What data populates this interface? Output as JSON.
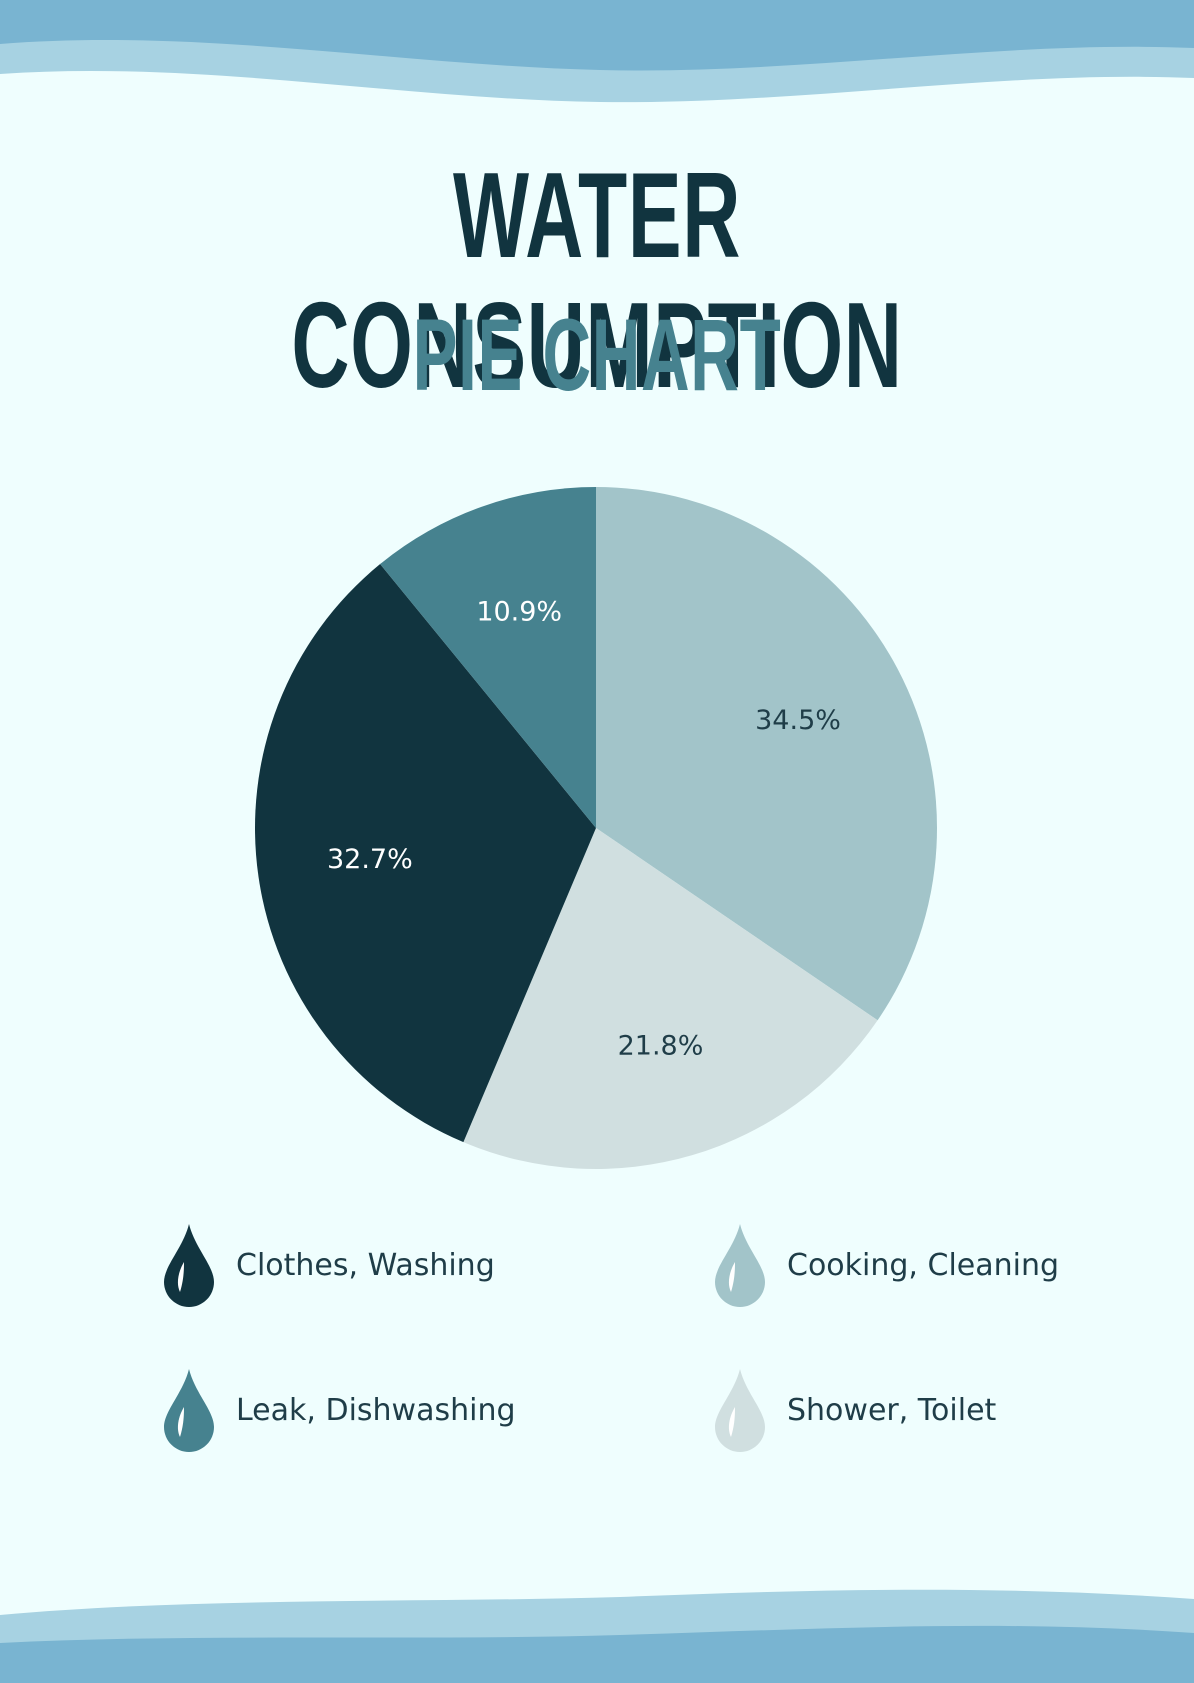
{
  "header": {
    "title": "WATER CONSUMPTION",
    "subtitle": "PIE CHART"
  },
  "colors": {
    "background": "#effefe",
    "wave_light": "#a7d2e2",
    "wave_dark": "#79b4d1",
    "title": "#11343f",
    "subtitle": "#46828f"
  },
  "chart_data": {
    "type": "pie",
    "title": "WATER CONSUMPTION PIE CHART",
    "start_angle_deg": 0,
    "direction": "clockwise",
    "slices": [
      {
        "name": "Cooking, Cleaning",
        "value": 34.5,
        "label": "34.5%",
        "color": "#a2c4c9",
        "label_color": "#1f3d48",
        "icon": "water-drop-icon"
      },
      {
        "name": "Shower, Toilet",
        "value": 21.8,
        "label": "21.8%",
        "color": "#d0dfe0",
        "label_color": "#1f3d48",
        "icon": "water-drop-icon"
      },
      {
        "name": "Clothes, Washing",
        "value": 32.7,
        "label": "32.7%",
        "color": "#11343f",
        "label_color": "#ffffff",
        "icon": "water-drop-icon"
      },
      {
        "name": "Leak, Dishwashing",
        "value": 10.9,
        "label": "10.9%",
        "color": "#46828f",
        "label_color": "#ffffff",
        "icon": "water-drop-icon"
      }
    ],
    "legend": {
      "placement": "bottom",
      "items": [
        {
          "label": "Clothes, Washing",
          "color": "#11343f"
        },
        {
          "label": "Cooking, Cleaning",
          "color": "#a2c4c9"
        },
        {
          "label": "Leak, Dishwashing",
          "color": "#46828f"
        },
        {
          "label": "Shower, Toilet",
          "color": "#d0dfe0"
        }
      ]
    }
  }
}
